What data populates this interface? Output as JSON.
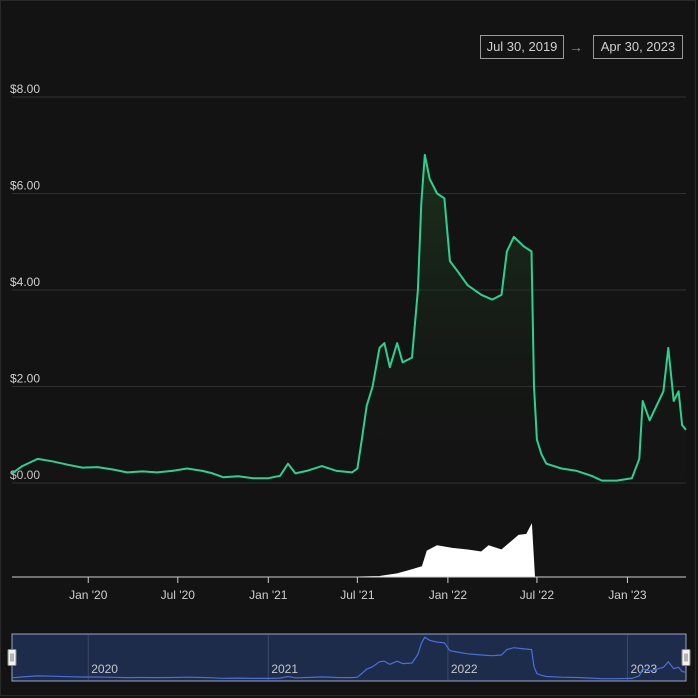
{
  "date_range": {
    "start": "Jul 30, 2019",
    "arrow": "→",
    "end": "Apr 30, 2023"
  },
  "colors": {
    "background": "#131313",
    "price_line": "#2bd18e",
    "volume": "#ffffff",
    "navigator_line": "#4a6fd8",
    "navigator_fill": "#1d2c4a",
    "grid": "#303030"
  },
  "chart_data": {
    "type": "line",
    "title": "",
    "xlabel": "",
    "ylabel": "",
    "x_range": [
      "2019-07-30",
      "2023-04-30"
    ],
    "ylim": [
      0,
      8
    ],
    "y_ticks": [
      {
        "value": 0,
        "label": "$0.00"
      },
      {
        "value": 2,
        "label": "$2.00"
      },
      {
        "value": 4,
        "label": "$4.00"
      },
      {
        "value": 6,
        "label": "$6.00"
      },
      {
        "value": 8,
        "label": "$8.00"
      }
    ],
    "x_ticks": [
      {
        "date": "2020-01-01",
        "label": "Jan '20"
      },
      {
        "date": "2020-07-01",
        "label": "Jul '20"
      },
      {
        "date": "2021-01-01",
        "label": "Jan '21"
      },
      {
        "date": "2021-07-01",
        "label": "Jul '21"
      },
      {
        "date": "2022-01-01",
        "label": "Jan '22"
      },
      {
        "date": "2022-07-01",
        "label": "Jul '22"
      },
      {
        "date": "2023-01-01",
        "label": "Jan '23"
      }
    ],
    "grid": true,
    "series": [
      {
        "kind": "price",
        "points": [
          [
            "2019-07-30",
            0.2
          ],
          [
            "2019-08-20",
            0.35
          ],
          [
            "2019-09-20",
            0.5
          ],
          [
            "2019-10-20",
            0.45
          ],
          [
            "2019-11-20",
            0.38
          ],
          [
            "2019-12-20",
            0.32
          ],
          [
            "2020-01-20",
            0.33
          ],
          [
            "2020-02-20",
            0.28
          ],
          [
            "2020-03-20",
            0.22
          ],
          [
            "2020-04-20",
            0.24
          ],
          [
            "2020-05-20",
            0.22
          ],
          [
            "2020-06-20",
            0.25
          ],
          [
            "2020-07-20",
            0.3
          ],
          [
            "2020-08-20",
            0.25
          ],
          [
            "2020-09-10",
            0.2
          ],
          [
            "2020-10-01",
            0.12
          ],
          [
            "2020-11-01",
            0.14
          ],
          [
            "2020-12-01",
            0.1
          ],
          [
            "2021-01-01",
            0.1
          ],
          [
            "2021-01-25",
            0.15
          ],
          [
            "2021-02-10",
            0.4
          ],
          [
            "2021-02-25",
            0.2
          ],
          [
            "2021-03-20",
            0.25
          ],
          [
            "2021-04-20",
            0.35
          ],
          [
            "2021-05-20",
            0.25
          ],
          [
            "2021-06-20",
            0.22
          ],
          [
            "2021-07-01",
            0.3
          ],
          [
            "2021-07-10",
            0.9
          ],
          [
            "2021-07-20",
            1.6
          ],
          [
            "2021-08-01",
            2.0
          ],
          [
            "2021-08-15",
            2.8
          ],
          [
            "2021-08-25",
            2.9
          ],
          [
            "2021-09-05",
            2.4
          ],
          [
            "2021-09-20",
            2.9
          ],
          [
            "2021-10-01",
            2.5
          ],
          [
            "2021-10-20",
            2.6
          ],
          [
            "2021-11-01",
            4.0
          ],
          [
            "2021-11-08",
            5.8
          ],
          [
            "2021-11-15",
            6.8
          ],
          [
            "2021-11-25",
            6.3
          ],
          [
            "2021-12-10",
            6.0
          ],
          [
            "2021-12-25",
            5.9
          ],
          [
            "2022-01-05",
            4.6
          ],
          [
            "2022-01-20",
            4.4
          ],
          [
            "2022-02-10",
            4.1
          ],
          [
            "2022-03-10",
            3.9
          ],
          [
            "2022-04-01",
            3.8
          ],
          [
            "2022-04-20",
            3.9
          ],
          [
            "2022-05-01",
            4.8
          ],
          [
            "2022-05-15",
            5.1
          ],
          [
            "2022-06-05",
            4.9
          ],
          [
            "2022-06-20",
            4.8
          ],
          [
            "2022-06-25",
            2.0
          ],
          [
            "2022-07-01",
            0.9
          ],
          [
            "2022-07-10",
            0.6
          ],
          [
            "2022-07-20",
            0.4
          ],
          [
            "2022-08-20",
            0.3
          ],
          [
            "2022-09-20",
            0.25
          ],
          [
            "2022-10-20",
            0.15
          ],
          [
            "2022-11-10",
            0.05
          ],
          [
            "2022-12-10",
            0.05
          ],
          [
            "2023-01-10",
            0.1
          ],
          [
            "2023-01-25",
            0.5
          ],
          [
            "2023-02-01",
            1.7
          ],
          [
            "2023-02-15",
            1.3
          ],
          [
            "2023-03-01",
            1.6
          ],
          [
            "2023-03-15",
            1.9
          ],
          [
            "2023-03-25",
            2.8
          ],
          [
            "2023-04-05",
            1.7
          ],
          [
            "2023-04-15",
            1.9
          ],
          [
            "2023-04-22",
            1.2
          ],
          [
            "2023-04-30",
            1.1
          ]
        ]
      },
      {
        "kind": "volume",
        "points": [
          [
            "2021-07-01",
            0.0
          ],
          [
            "2021-08-15",
            0.01
          ],
          [
            "2021-09-20",
            0.06
          ],
          [
            "2021-10-20",
            0.14
          ],
          [
            "2021-11-10",
            0.2
          ],
          [
            "2021-11-20",
            0.5
          ],
          [
            "2021-12-10",
            0.6
          ],
          [
            "2022-01-10",
            0.55
          ],
          [
            "2022-02-10",
            0.52
          ],
          [
            "2022-03-10",
            0.48
          ],
          [
            "2022-03-25",
            0.6
          ],
          [
            "2022-04-20",
            0.52
          ],
          [
            "2022-05-10",
            0.68
          ],
          [
            "2022-05-25",
            0.8
          ],
          [
            "2022-06-10",
            0.82
          ],
          [
            "2022-06-20",
            1.0
          ],
          [
            "2022-06-26",
            0.0
          ]
        ]
      }
    ],
    "navigator": {
      "year_labels": [
        {
          "date": "2020-01-01",
          "label": "2020"
        },
        {
          "date": "2021-01-01",
          "label": "2021"
        },
        {
          "date": "2022-01-01",
          "label": "2022"
        },
        {
          "date": "2023-01-01",
          "label": "2023"
        }
      ]
    }
  }
}
